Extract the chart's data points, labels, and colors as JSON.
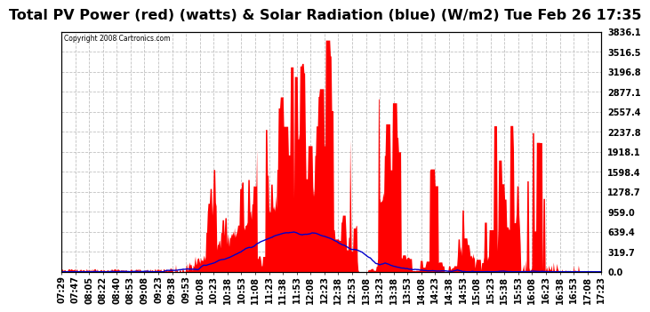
{
  "title": "Total PV Power (red) (watts) & Solar Radiation (blue) (W/m2) Tue Feb 26 17:35",
  "copyright_text": "Copyright 2008 Cartronics.com",
  "background_color": "#ffffff",
  "plot_bg_color": "#ffffff",
  "grid_color": "#c0c0c0",
  "y_ticks": [
    0.0,
    319.7,
    639.4,
    959.0,
    1278.7,
    1598.4,
    1918.1,
    2237.8,
    2557.4,
    2877.1,
    3196.8,
    3516.5,
    3836.1
  ],
  "y_max": 3836.1,
  "pv_color": "#ff0000",
  "solar_color": "#0000cc",
  "title_fontsize": 11.5,
  "tick_fontsize": 7,
  "x_tick_labels": [
    "07:29",
    "07:47",
    "08:05",
    "08:22",
    "08:40",
    "08:53",
    "09:08",
    "09:23",
    "09:38",
    "09:53",
    "10:08",
    "10:23",
    "10:38",
    "10:53",
    "11:08",
    "11:23",
    "11:38",
    "11:53",
    "12:08",
    "12:23",
    "12:38",
    "12:53",
    "13:08",
    "13:23",
    "13:38",
    "13:53",
    "14:08",
    "14:23",
    "14:38",
    "14:53",
    "15:08",
    "15:23",
    "15:38",
    "15:53",
    "16:08",
    "16:23",
    "16:38",
    "16:53",
    "17:08",
    "17:23"
  ]
}
